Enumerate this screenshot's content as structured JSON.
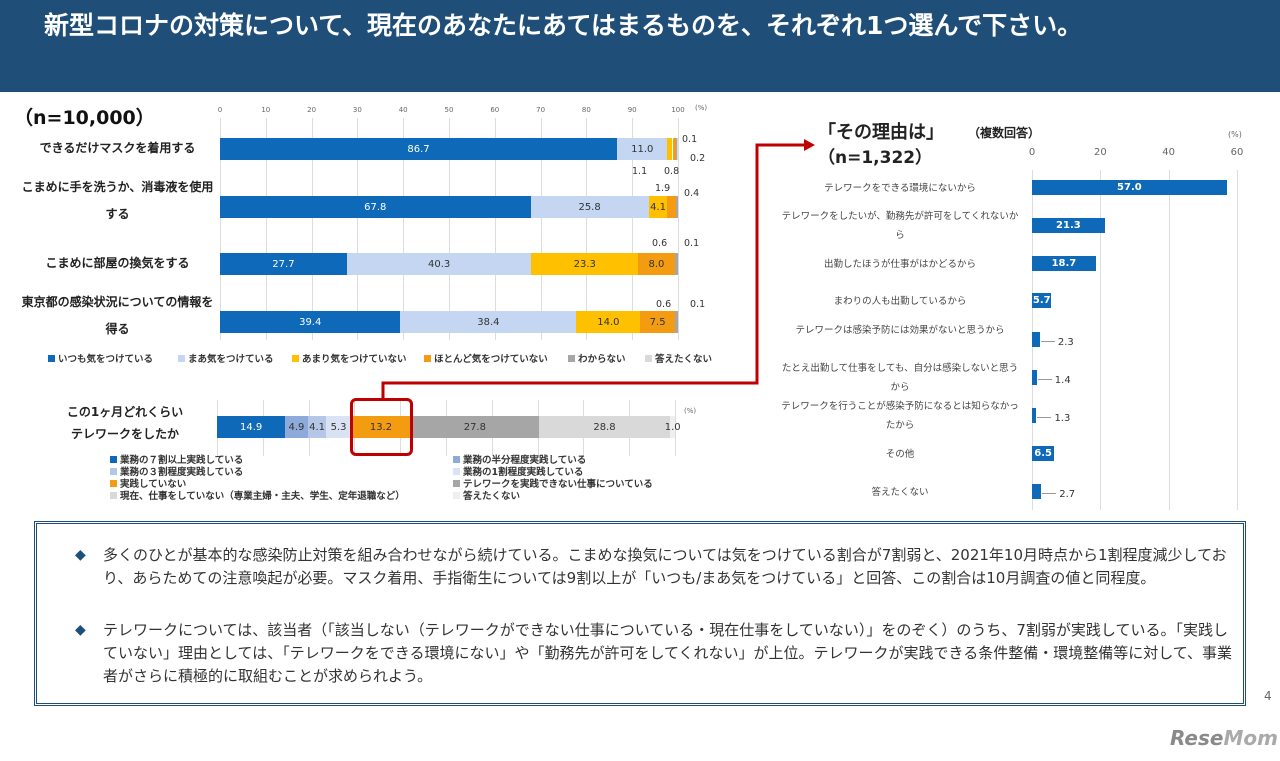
{
  "header": {
    "title": "新型コロナの対策について、現在のあなたにあてはまるものを、それぞれ1つ選んで下さい。"
  },
  "left_chart": {
    "n_label": "（n=10,000）",
    "unit": "(%)",
    "ticks": [
      "0",
      "10",
      "20",
      "30",
      "40",
      "50",
      "60",
      "70",
      "80",
      "90",
      "100"
    ],
    "colors": [
      "#0e6ab8",
      "#c5d6f2",
      "#ffc000",
      "#f39c12",
      "#a6a6a6",
      "#d9d9d9"
    ],
    "legend": [
      "いつも気をつけている",
      "まあ気をつけている",
      "あまり気をつけていない",
      "ほとんど気をつけていない",
      "わからない",
      "答えたくない"
    ],
    "rows": [
      {
        "label": "できるだけマスクを着用する",
        "values": [
          86.7,
          11.0,
          1.1,
          0.8,
          0.2,
          0.1
        ],
        "labels": [
          "86.7",
          "11.0",
          "1.1",
          "0.8",
          "0.2",
          "0.1"
        ]
      },
      {
        "label": "こまめに手を洗うか、消毒液を使用する",
        "values": [
          67.8,
          25.8,
          4.1,
          1.9,
          0.4
        ],
        "labels": [
          "67.8",
          "25.8",
          "4.1",
          "1.9",
          "0.4"
        ]
      },
      {
        "label": "こまめに部屋の換気をする",
        "values": [
          27.7,
          40.3,
          23.3,
          8.0,
          0.6,
          0.1
        ],
        "labels": [
          "27.7",
          "40.3",
          "23.3",
          "8.0",
          "0.6",
          "0.1"
        ]
      },
      {
        "label": "東京都の感染状況についての情報を得る",
        "values": [
          39.4,
          38.4,
          14.0,
          7.5,
          0.6,
          0.1
        ],
        "labels": [
          "39.4",
          "38.4",
          "14.0",
          "7.5",
          "0.6",
          "0.1"
        ]
      }
    ]
  },
  "telework_chart": {
    "label_line1": "この1ヶ月どれくらい",
    "label_line2": "テレワークをしたか",
    "unit": "(%)",
    "values": [
      14.9,
      4.9,
      4.1,
      5.3,
      13.2,
      27.8,
      28.8,
      1.0
    ],
    "labels": [
      "14.9",
      "4.9",
      "4.1",
      "5.3",
      "13.2",
      "27.8",
      "28.8",
      "1.0"
    ],
    "colors": [
      "#0e6ab8",
      "#8eaadb",
      "#b4c7e7",
      "#dae3f3",
      "#f39c12",
      "#a6a6a6",
      "#d9d9d9",
      "#efefef"
    ],
    "legend": [
      "業務の７割以上実践している",
      "業務の半分程度実践している",
      "業務の３割程度実践している",
      "業務の1割程度実践している",
      "実践していない",
      "テレワークを実践できない仕事についている",
      "現在、仕事をしていない（専業主婦・主夫、学生、定年退職など）",
      "答えたくない"
    ],
    "highlight_color": "#c00000"
  },
  "right_chart": {
    "title": "「その理由は」",
    "subtitle": "（複数回答）",
    "n_label": "（n=1,322）",
    "unit": "(%)",
    "ticks": [
      "0",
      "20",
      "40",
      "60"
    ],
    "xlim": [
      0,
      60
    ],
    "color": "#0e6ab8",
    "categories": [
      "テレワークをできる環境にないから",
      "テレワークをしたいが、勤務先が許可をしてくれないから",
      "出勤したほうが仕事がはかどるから",
      "まわりの人も出勤しているから",
      "テレワークは感染予防には効果がないと思うから",
      "たとえ出勤して仕事をしても、自分は感染しないと思うから",
      "テレワークを行うことが感染予防になるとは知らなかったから",
      "その他",
      "答えたくない"
    ],
    "values": [
      57.0,
      21.3,
      18.7,
      5.7,
      2.3,
      1.4,
      1.3,
      6.5,
      2.7
    ],
    "labels": [
      "57.0",
      "21.3",
      "18.7",
      "5.7",
      "2.3",
      "1.4",
      "1.3",
      "6.5",
      "2.7"
    ]
  },
  "summary": {
    "bullets": [
      "多くのひとが基本的な感染防止対策を組み合わせながら続けている。こまめな換気については気をつけている割合が7割弱と、2021年10月時点から1割程度減少しており、あらためての注意喚起が必要。マスク着用、手指衛生については9割以上が「いつも/まあ気をつけている」と回答、この割合は10月調査の値と同程度。",
      "テレワークについては、該当者（「該当しない（テレワークができない仕事についている・現在仕事をしていない）」をのぞく）のうち、7割弱が実践している。「実践していない」理由としては、「テレワークをできる環境にない」や「勤務先が許可をしてくれない」が上位。テレワークが実践できる条件整備・環境整備等に対して、事業者がさらに積極的に取組むことが求められよう。"
    ],
    "bullet_icon": "diamond-icon"
  },
  "page_number": "4",
  "logo": "ReseMom"
}
